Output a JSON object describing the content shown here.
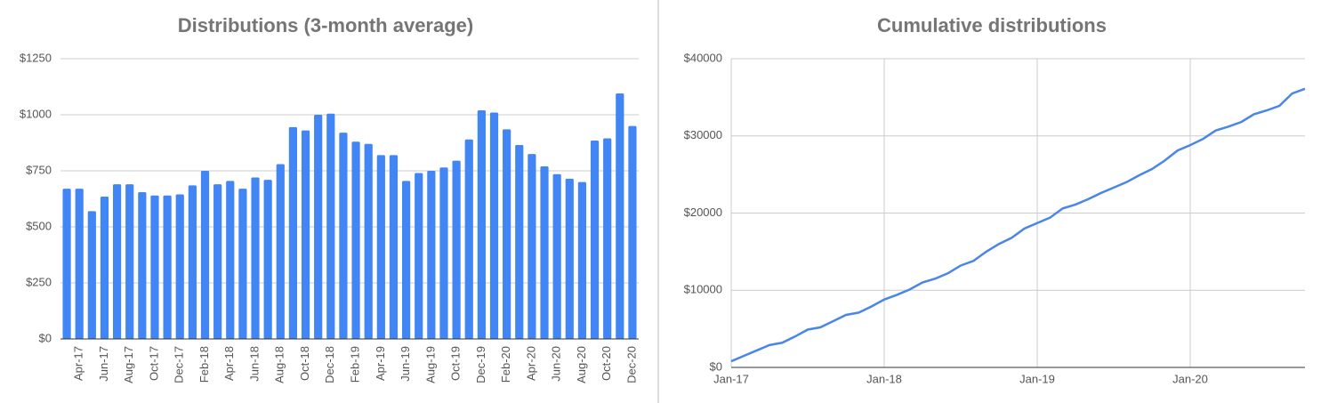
{
  "chart_data": [
    {
      "type": "bar",
      "title": "Distributions (3-month average)",
      "color": "#4285f4",
      "grid": true,
      "categories": [
        null,
        "Apr-17",
        null,
        "Jun-17",
        null,
        "Aug-17",
        null,
        "Oct-17",
        null,
        "Dec-17",
        null,
        "Feb-18",
        null,
        "Apr-18",
        null,
        "Jun-18",
        null,
        "Aug-18",
        null,
        "Oct-18",
        null,
        "Dec-18",
        null,
        "Feb-19",
        null,
        "Apr-19",
        null,
        "Jun-19",
        null,
        "Aug-19",
        null,
        "Oct-19",
        null,
        "Dec-19",
        null,
        "Feb-20",
        null,
        "Apr-20",
        null,
        "Jun-20",
        null,
        "Aug-20",
        null,
        "Oct-20",
        null,
        "Dec-20"
      ],
      "values": [
        670,
        670,
        570,
        635,
        690,
        690,
        655,
        640,
        640,
        645,
        685,
        750,
        690,
        705,
        670,
        720,
        710,
        780,
        945,
        930,
        1000,
        1005,
        920,
        880,
        870,
        820,
        820,
        705,
        740,
        750,
        765,
        795,
        890,
        1020,
        1010,
        935,
        865,
        825,
        770,
        735,
        715,
        700,
        885,
        895,
        1095,
        950
      ],
      "ylim": [
        0,
        1250
      ],
      "yticks": [
        {
          "value": 0,
          "label": "$0"
        },
        {
          "value": 250,
          "label": "$250"
        },
        {
          "value": 500,
          "label": "$500"
        },
        {
          "value": 750,
          "label": "$750"
        },
        {
          "value": 1000,
          "label": "$1000"
        },
        {
          "value": 1250,
          "label": "$1250"
        }
      ]
    },
    {
      "type": "line",
      "title": "Cumulative distributions",
      "color": "#4a86e8",
      "grid": true,
      "x": [
        "Jan-17",
        "Feb-17",
        "Mar-17",
        "Apr-17",
        "May-17",
        "Jun-17",
        "Jul-17",
        "Aug-17",
        "Sep-17",
        "Oct-17",
        "Nov-17",
        "Dec-17",
        "Jan-18",
        "Feb-18",
        "Mar-18",
        "Apr-18",
        "May-18",
        "Jun-18",
        "Jul-18",
        "Aug-18",
        "Sep-18",
        "Oct-18",
        "Nov-18",
        "Dec-18",
        "Jan-19",
        "Feb-19",
        "Mar-19",
        "Apr-19",
        "May-19",
        "Jun-19",
        "Jul-19",
        "Aug-19",
        "Sep-19",
        "Oct-19",
        "Nov-19",
        "Dec-19",
        "Jan-20",
        "Feb-20",
        "Mar-20",
        "Apr-20",
        "May-20",
        "Jun-20",
        "Jul-20",
        "Aug-20",
        "Sep-20",
        "Oct-20"
      ],
      "values": [
        800,
        1500,
        2200,
        2900,
        3200,
        4000,
        4900,
        5200,
        6000,
        6800,
        7100,
        7900,
        8800,
        9400,
        10100,
        11000,
        11500,
        12200,
        13200,
        13800,
        15000,
        16000,
        16800,
        18000,
        18700,
        19400,
        20600,
        21100,
        21800,
        22600,
        23300,
        24000,
        24900,
        25700,
        26800,
        28100,
        28800,
        29600,
        30700,
        31200,
        31800,
        32800,
        33300,
        33900,
        35500,
        36100
      ],
      "xticks": [
        "Jan-17",
        "Jan-18",
        "Jan-19",
        "Jan-20"
      ],
      "ylim": [
        0,
        40000
      ],
      "yticks": [
        {
          "value": 0,
          "label": "$0"
        },
        {
          "value": 10000,
          "label": "$10000"
        },
        {
          "value": 20000,
          "label": "$20000"
        },
        {
          "value": 30000,
          "label": "$30000"
        },
        {
          "value": 40000,
          "label": "$40000"
        }
      ]
    }
  ]
}
